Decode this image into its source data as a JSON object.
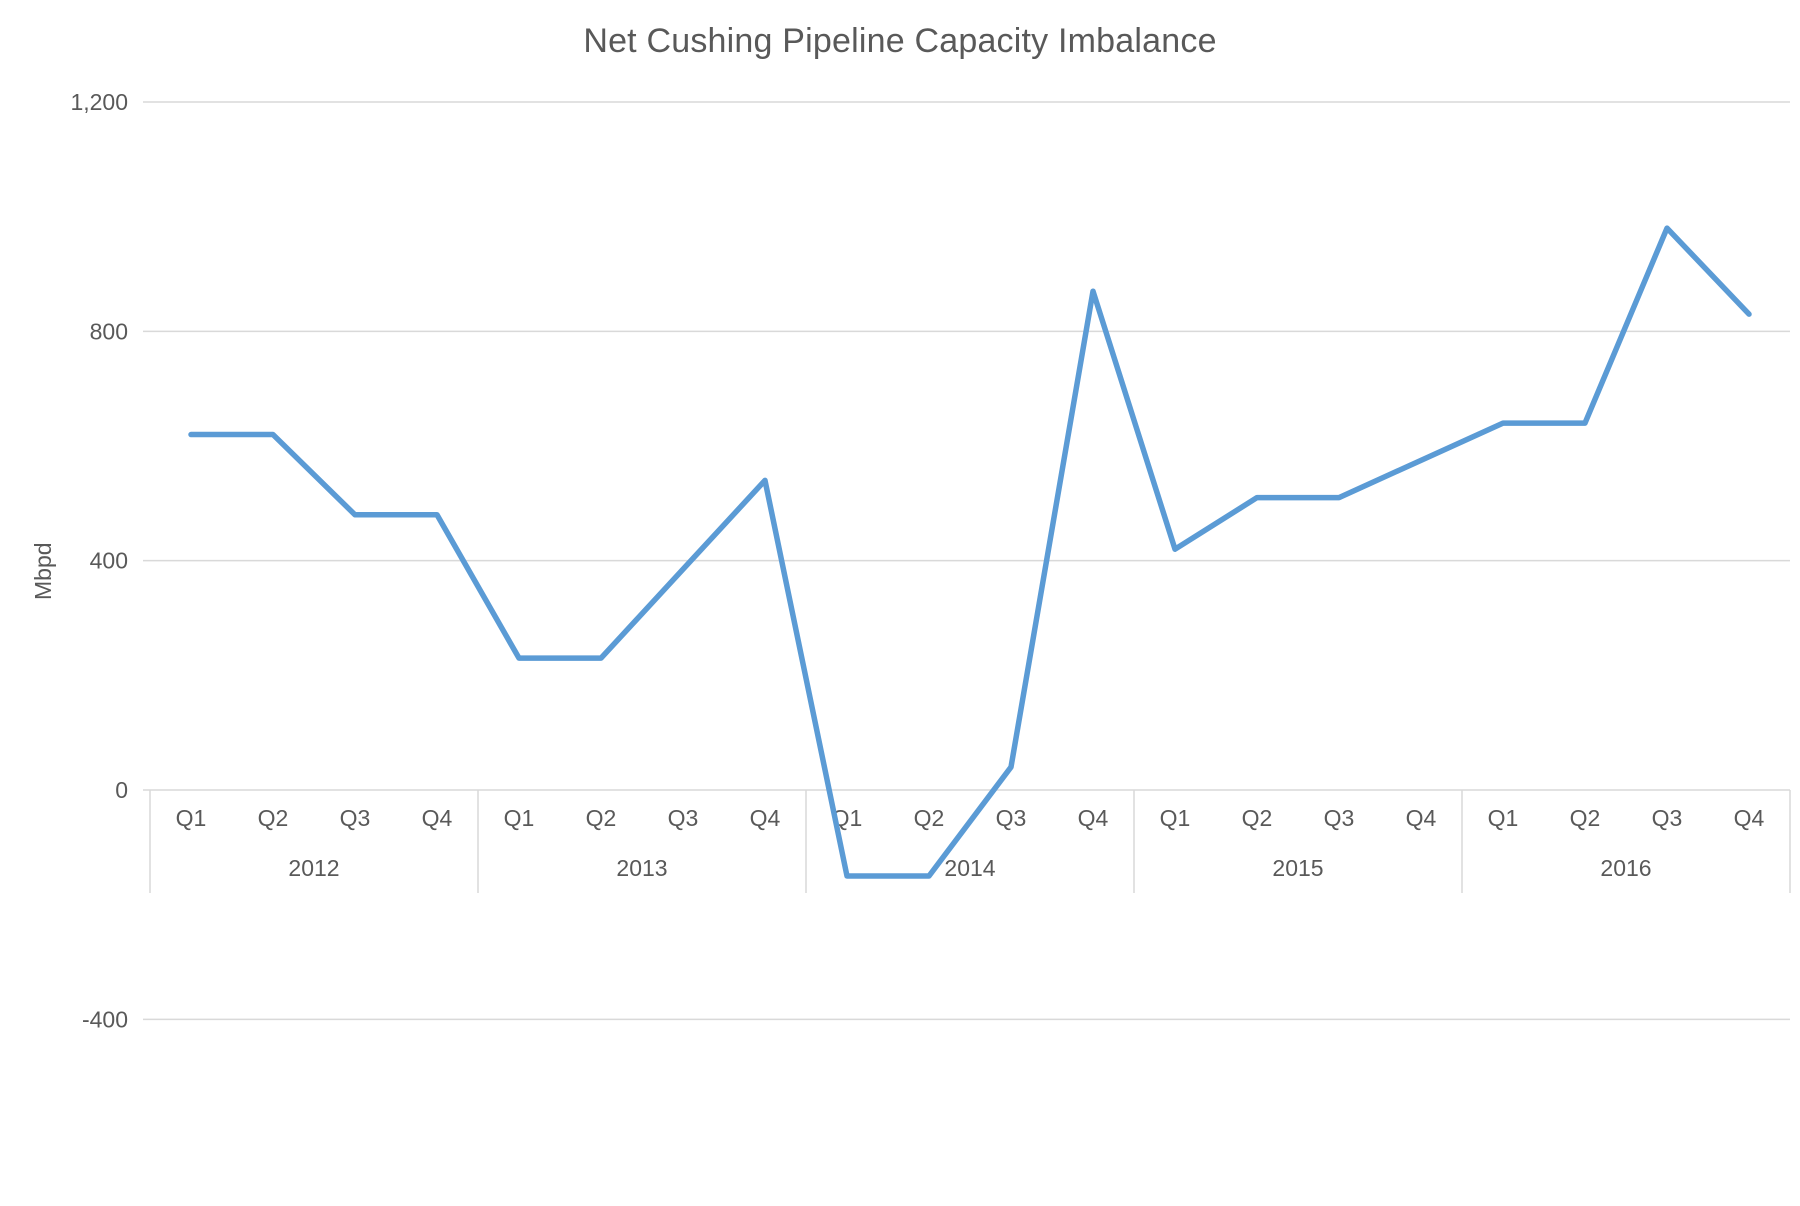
{
  "chart_data": {
    "type": "line",
    "title": "Net Cushing Pipeline Capacity Imbalance",
    "ylabel": "Mbpd",
    "xlabel": "",
    "ylim": [
      -400,
      1200
    ],
    "yticks": [
      1200,
      800,
      400,
      0,
      -400
    ],
    "ytick_labels": [
      "1,200",
      "800",
      "400",
      "0",
      "-400"
    ],
    "grid": true,
    "legend": false,
    "x_axis": {
      "years": [
        "2012",
        "2013",
        "2014",
        "2015",
        "2016"
      ],
      "quarters": [
        "Q1",
        "Q2",
        "Q3",
        "Q4"
      ]
    },
    "categories": [
      "2012-Q1",
      "2012-Q2",
      "2012-Q3",
      "2012-Q4",
      "2013-Q1",
      "2013-Q2",
      "2013-Q3",
      "2013-Q4",
      "2014-Q1",
      "2014-Q2",
      "2014-Q3",
      "2014-Q4",
      "2015-Q1",
      "2015-Q2",
      "2015-Q3",
      "2015-Q4",
      "2016-Q1",
      "2016-Q2",
      "2016-Q3",
      "2016-Q4"
    ],
    "series": [
      {
        "name": "Net Cushing Pipeline Capacity Imbalance",
        "values": [
          620,
          620,
          480,
          480,
          230,
          230,
          385,
          540,
          -150,
          -150,
          40,
          870,
          420,
          510,
          510,
          575,
          640,
          640,
          980,
          830
        ]
      }
    ],
    "colors": {
      "line": "#5B9BD5",
      "grid": "#D9D9D9",
      "text": "#595959",
      "background": "#FFFFFF"
    }
  }
}
